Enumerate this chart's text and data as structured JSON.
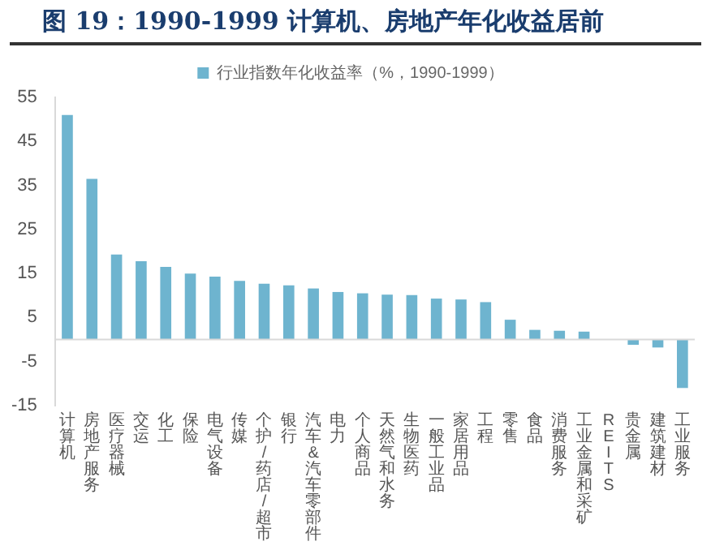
{
  "chart_data": {
    "type": "bar",
    "title": "图 19：1990-1999 计算机、房地产年化收益居前",
    "categories": [
      "计算机",
      "房地产服务",
      "医疗器械",
      "交运",
      "化工",
      "保险",
      "电气设备",
      "传媒",
      "个护/药店/超市",
      "银行",
      "汽车&汽车零部件",
      "电力",
      "个人商品",
      "天然气和水务",
      "生物医药",
      "一般工业品",
      "家居用品",
      "工程",
      "零售",
      "食品",
      "消费服务",
      "工业金属和采矿",
      "REITS",
      "贵金属",
      "建筑建材",
      "工业服务"
    ],
    "series": [
      {
        "name": "行业指数年化收益率（%，1990-1999）",
        "color": "#6eb4cf",
        "values": [
          51,
          36.5,
          19.3,
          17.8,
          16.5,
          15,
          14.3,
          13.3,
          12.7,
          12.3,
          11.6,
          10.8,
          10.5,
          10.2,
          10.1,
          9.3,
          9.1,
          8.5,
          4.5,
          2.2,
          2,
          1.8,
          0,
          -1.2,
          -1.8,
          -11
        ]
      }
    ],
    "ylim": [
      -15,
      55
    ],
    "yticks": [
      -15,
      -5,
      5,
      15,
      25,
      35,
      45,
      55
    ],
    "legend": "top"
  }
}
